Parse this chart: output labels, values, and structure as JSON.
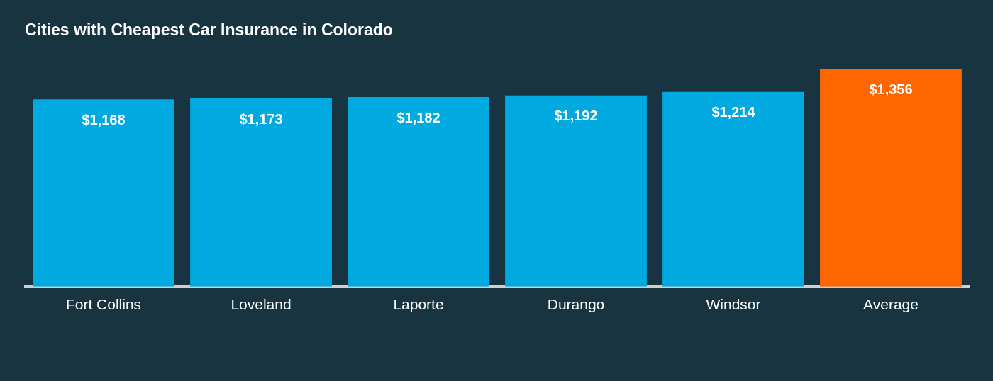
{
  "chart_data": {
    "type": "bar",
    "title": "Cities with Cheapest Car Insurance in Colorado",
    "categories": [
      "Fort Collins",
      "Loveland",
      "Laporte",
      "Durango",
      "Windsor",
      "Average"
    ],
    "values": [
      1168,
      1173,
      1182,
      1192,
      1214,
      1356
    ],
    "value_labels": [
      "$1,168",
      "$1,173",
      "$1,182",
      "$1,192",
      "$1,214",
      "$1,356"
    ],
    "colors": [
      "#00a9e0",
      "#00a9e0",
      "#00a9e0",
      "#00a9e0",
      "#00a9e0",
      "#ff6600"
    ],
    "grid": false,
    "legend": false
  }
}
